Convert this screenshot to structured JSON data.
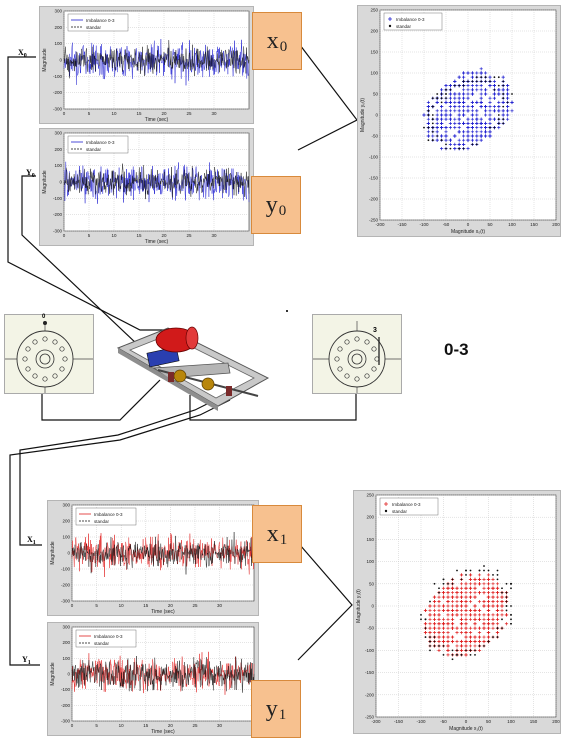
{
  "channels": {
    "x0": {
      "tag": "x",
      "sub": "0",
      "side_label": "X",
      "side_sub": "0"
    },
    "y0": {
      "tag": "y",
      "sub": "0",
      "side_label": "Y",
      "side_sub": "0"
    },
    "x1": {
      "tag": "x",
      "sub": "1",
      "side_label": "X",
      "side_sub": "1"
    },
    "y1": {
      "tag": "y",
      "sub": "1",
      "side_label": "Y",
      "side_sub": "1"
    }
  },
  "case_label": "0-3",
  "disk_labels": {
    "left": "0",
    "right": "3"
  },
  "colors": {
    "top_series": "#1f1fd0",
    "bottom_series": "#e02020",
    "reference": "#111111",
    "tag_fill": "#f7c18f"
  },
  "chart_data": [
    {
      "id": "ts-x0",
      "type": "line",
      "xlabel": "Time (sec)",
      "ylabel": "Magnitude",
      "xticks": [
        "0",
        "5",
        "10",
        "15",
        "20",
        "25",
        "30"
      ],
      "yticks": [
        "300",
        "200",
        "100",
        "0",
        "-100",
        "-200",
        "-300"
      ],
      "xlim": [
        0,
        37
      ],
      "ylim": [
        -300,
        300
      ],
      "grid": true,
      "legend": "top-left",
      "series": [
        {
          "name": "Imbalance 0-3",
          "amplitude": 100
        },
        {
          "name": "standar",
          "amplitude": 75
        }
      ]
    },
    {
      "id": "ts-y0",
      "type": "line",
      "xlabel": "Time (sec)",
      "ylabel": "Magnitude",
      "xticks": [
        "0",
        "5",
        "10",
        "15",
        "20",
        "25",
        "30"
      ],
      "yticks": [
        "300",
        "200",
        "100",
        "0",
        "-100",
        "-200",
        "-300"
      ],
      "xlim": [
        0,
        37
      ],
      "ylim": [
        -300,
        300
      ],
      "grid": true,
      "legend": "top-left",
      "series": [
        {
          "name": "Imbalance 0-3",
          "amplitude": 100
        },
        {
          "name": "standar",
          "amplitude": 75
        }
      ]
    },
    {
      "id": "orbit-0",
      "type": "scatter",
      "xlabel": "Magnitude x₀(t)",
      "ylabel": "Magnitude y₀(t)",
      "xticks": [
        "-200",
        "-150",
        "-100",
        "-50",
        "0",
        "50",
        "100",
        "150",
        "200"
      ],
      "yticks": [
        "250",
        "200",
        "150",
        "100",
        "50",
        "0",
        "-50",
        "-100",
        "-150",
        "-200",
        "-250"
      ],
      "xlim": [
        -200,
        200
      ],
      "ylim": [
        -250,
        250
      ],
      "grid": true,
      "legend": "top-left",
      "series": [
        {
          "name": "Imbalance 0-3",
          "cx": 0,
          "cy": 10,
          "rx": 160,
          "ry": 150,
          "angle": 40
        },
        {
          "name": "standar",
          "cx": 0,
          "cy": 5,
          "rx": 150,
          "ry": 140,
          "angle": 40
        }
      ]
    },
    {
      "id": "ts-x1",
      "type": "line",
      "xlabel": "Time (sec)",
      "ylabel": "Magnitude",
      "xticks": [
        "0",
        "5",
        "10",
        "15",
        "20",
        "25",
        "30"
      ],
      "yticks": [
        "300",
        "200",
        "100",
        "0",
        "-100",
        "-200",
        "-300"
      ],
      "xlim": [
        0,
        37
      ],
      "ylim": [
        -300,
        300
      ],
      "grid": true,
      "legend": "top-left",
      "series": [
        {
          "name": "Imbalance 0-3",
          "amplitude": 100
        },
        {
          "name": "standar",
          "amplitude": 80
        }
      ]
    },
    {
      "id": "ts-y1",
      "type": "line",
      "xlabel": "Time (sec)",
      "ylabel": "Magnitude",
      "xticks": [
        "0",
        "5",
        "10",
        "15",
        "20",
        "25",
        "30"
      ],
      "yticks": [
        "300",
        "200",
        "100",
        "0",
        "-100",
        "-200",
        "-300"
      ],
      "xlim": [
        0,
        37
      ],
      "ylim": [
        -300,
        300
      ],
      "grid": true,
      "legend": "top-left",
      "series": [
        {
          "name": "Imbalance 0-3",
          "amplitude": 100
        },
        {
          "name": "standar",
          "amplitude": 95
        }
      ]
    },
    {
      "id": "orbit-1",
      "type": "scatter",
      "xlabel": "Magnitude x₁(t)",
      "ylabel": "Magnitude y₁(t)",
      "xticks": [
        "-200",
        "-150",
        "-100",
        "-50",
        "0",
        "50",
        "100",
        "150",
        "200"
      ],
      "yticks": [
        "250",
        "200",
        "150",
        "100",
        "50",
        "0",
        "-50",
        "-100",
        "-150",
        "-200",
        "-250"
      ],
      "xlim": [
        -200,
        200
      ],
      "ylim": [
        -250,
        250
      ],
      "grid": true,
      "legend": "top-left",
      "series": [
        {
          "name": "Imbalance 0-3",
          "cx": 0,
          "cy": -20,
          "rx": 150,
          "ry": 150,
          "angle": 40
        },
        {
          "name": "standar",
          "cx": 0,
          "cy": -15,
          "rx": 165,
          "ry": 160,
          "angle": 40
        }
      ]
    }
  ]
}
